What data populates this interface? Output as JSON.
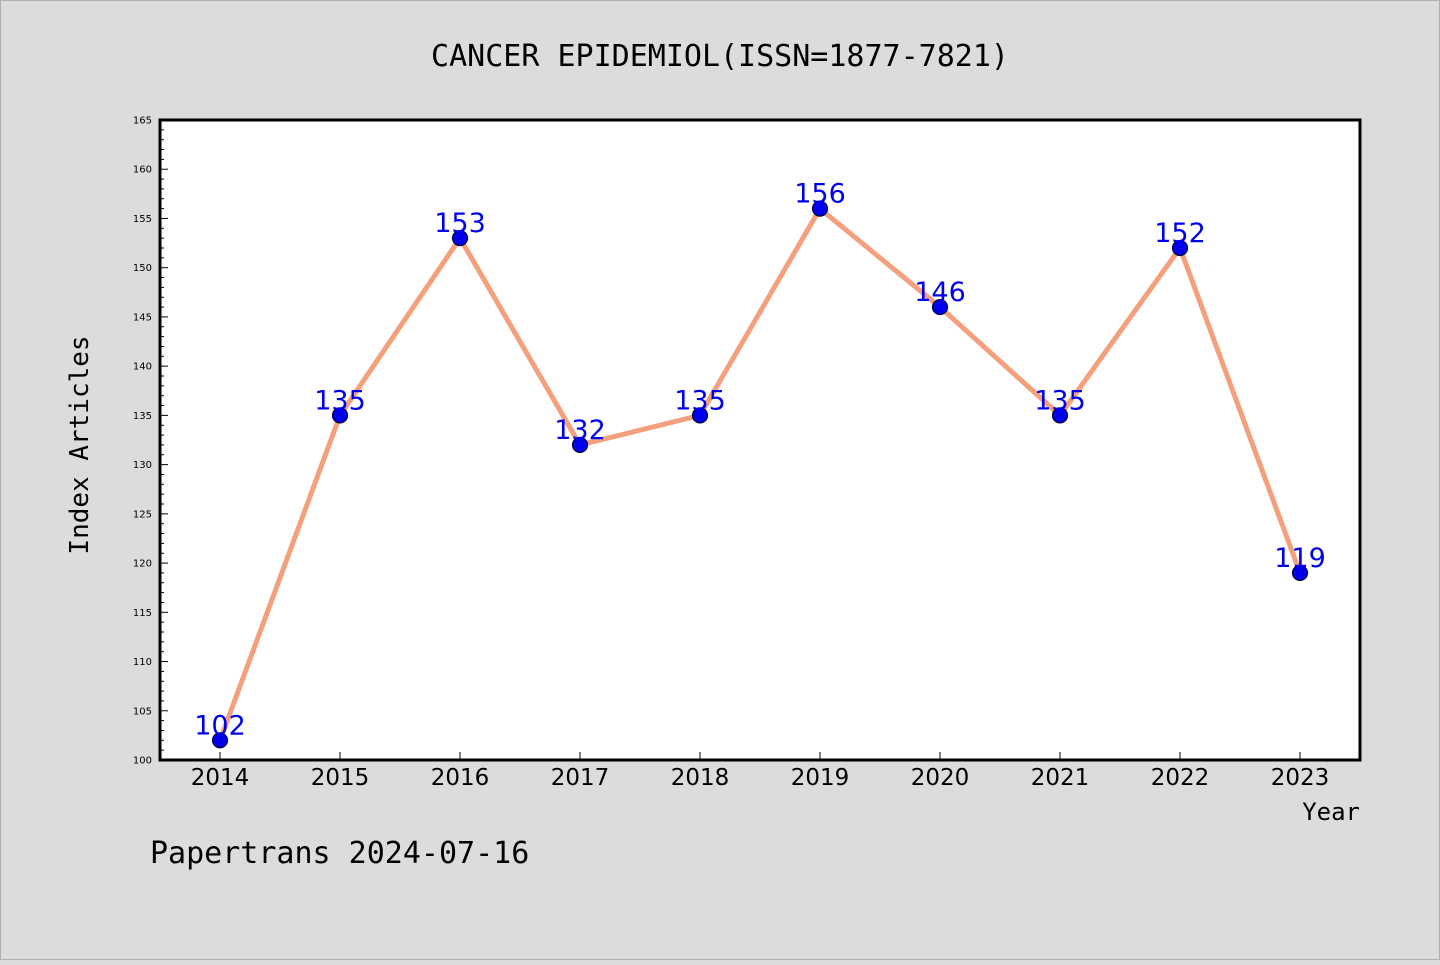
{
  "colors": {
    "background": "#dcdcdc",
    "plot_background": "#ffffff",
    "line": "#f5a07c",
    "marker": "#0000ee",
    "marker_edge": "#000033",
    "data_label": "#0000ee"
  },
  "footer": "Papertrans 2024-07-16",
  "chart_data": {
    "type": "line",
    "title": "CANCER EPIDEMIOL(ISSN=1877-7821)",
    "xlabel": "Year",
    "ylabel": "Index Articles",
    "categories": [
      "2014",
      "2015",
      "2016",
      "2017",
      "2018",
      "2019",
      "2020",
      "2021",
      "2022",
      "2023"
    ],
    "series": [
      {
        "values": [
          102,
          135,
          153,
          132,
          135,
          156,
          146,
          135,
          152,
          119
        ]
      }
    ],
    "data_labels": [
      "102",
      "135",
      "153",
      "132",
      "135",
      "156",
      "146",
      "135",
      "152",
      "119"
    ],
    "ylim": [
      100,
      165
    ],
    "yticks": [
      "100",
      "105",
      "110",
      "115",
      "120",
      "125",
      "130",
      "135",
      "140",
      "145",
      "150",
      "155",
      "160",
      "165"
    ],
    "grid": false,
    "legend": "none"
  }
}
